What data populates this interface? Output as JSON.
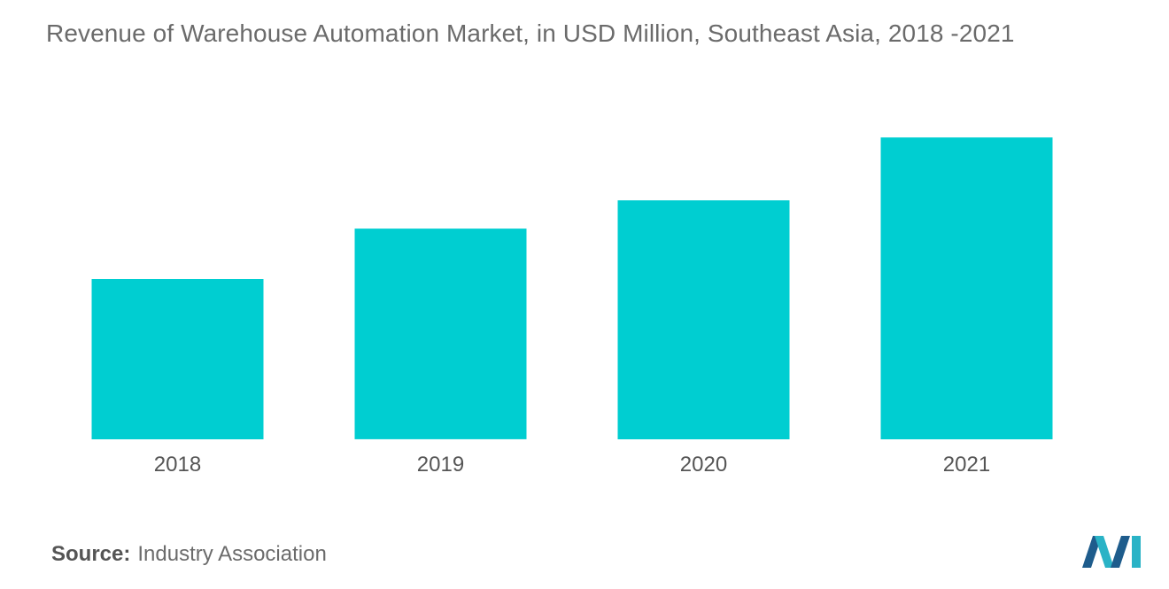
{
  "chart_data": {
    "type": "bar",
    "title": "Revenue of Warehouse Automation Market, in USD Million, Southeast Asia, 2018 -2021",
    "categories": [
      "2018",
      "2019",
      "2020",
      "2021"
    ],
    "values": [
      51,
      67,
      76,
      96
    ],
    "ylim": [
      0,
      100
    ],
    "grid": false,
    "legend": "none",
    "bar_color": "#00ced1"
  },
  "source": {
    "label": "Source:",
    "text": "Industry Association"
  },
  "logo": {
    "icon": "mordor-intelligence-logo-icon",
    "colors": [
      "#1e5c8c",
      "#2ab3c6"
    ]
  }
}
